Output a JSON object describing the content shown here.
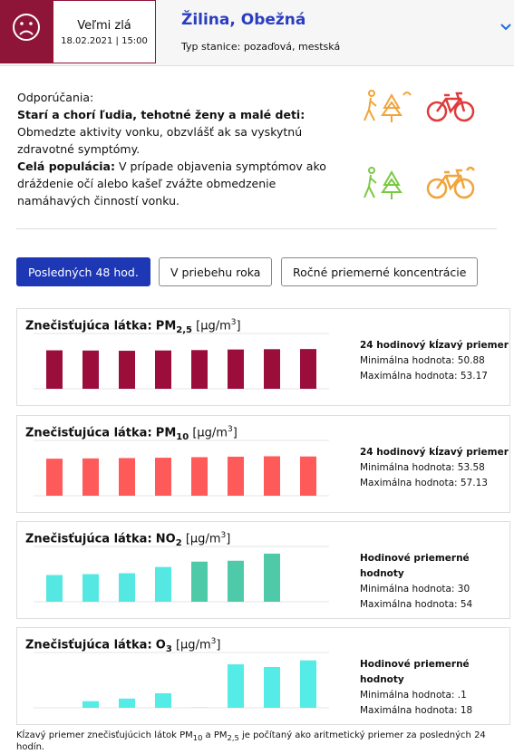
{
  "header": {
    "quality": "Veľmi zlá",
    "date": "18.02.2021",
    "time": "| 15:00",
    "station": "Žilina, Obežná",
    "station_type": "Typ stanice: pozaďová, mestská"
  },
  "recommendations": {
    "heading": "Odporúčania:",
    "group1": "Starí a chorí ľudia, tehotné ženy a malé deti:",
    "text1": "Obmedzte aktivity vonku, obzvlášť ak sa vyskytnú zdravotné symptómy.",
    "group2": "Celá populácia:",
    "text2": "V prípade objavenia symptómov ako dráždenie očí alebo kašeľ zvážte obmedzenie namáhavých činností vonku."
  },
  "tabs": [
    "Posledných 48 hod.",
    "V priebehu roka",
    "Ročné priemerné koncentrácie"
  ],
  "chart_data": [
    {
      "type": "bar",
      "label": "Znečisťujúca látka:",
      "pollutant": "PM",
      "pollutant_sub": "2,5",
      "unit": "[μg/m",
      "unit_sup": "3",
      "unit_close": "]",
      "stats_title": "24 hodinový kĺzavý priemer",
      "stats_min": "Minimálna hodnota: 50.88",
      "stats_max": "Maximálna hodnota: 53.17",
      "values": [
        51.5,
        51.2,
        50.9,
        51.3,
        51.8,
        52.6,
        53.0,
        53.2
      ],
      "color": "#9b0e3c",
      "ylim": [
        0,
        74
      ]
    },
    {
      "type": "bar",
      "label": "Znečisťujúca látka:",
      "pollutant": "PM",
      "pollutant_sub": "10",
      "unit": "[μg/m",
      "unit_sup": "3",
      "unit_close": "]",
      "stats_title": "24 hodinový kĺzavý priemer",
      "stats_min": "Minimálna hodnota: 53.58",
      "stats_max": "Maximálna hodnota: 57.13",
      "values": [
        53.6,
        54.0,
        54.5,
        55.0,
        55.8,
        56.5,
        57.1,
        56.8
      ],
      "color": "#ff5a5a",
      "ylim": [
        0,
        80
      ]
    },
    {
      "type": "bar",
      "label": "Znečisťujúca látka:",
      "pollutant": "NO",
      "pollutant_sub": "2",
      "unit": "[μg/m",
      "unit_sup": "3",
      "unit_close": "]",
      "stats_title": "Hodinové priemerné hodnoty",
      "stats_min": "Minimálna hodnota: 30",
      "stats_max": "Maximálna hodnota: 54",
      "values": [
        30,
        31,
        32,
        39,
        45,
        46,
        54
      ],
      "colors": [
        "#55e8e2",
        "#55e8e2",
        "#55e8e2",
        "#55e8e2",
        "#4fcaa8",
        "#4fcaa8",
        "#4fcaa8"
      ],
      "ylim": [
        0,
        62
      ]
    },
    {
      "type": "bar",
      "label": "Znečisťujúca látka:",
      "pollutant": "O",
      "pollutant_sub": "3",
      "unit": "[μg/m",
      "unit_sup": "3",
      "unit_close": "]",
      "stats_title": "Hodinové priemerné hodnoty",
      "stats_min": "Minimálna hodnota: .1",
      "stats_max": "Maximálna hodnota: 18",
      "values": [
        null,
        2.5,
        3.5,
        5.5,
        0.1,
        16.5,
        15.5,
        18
      ],
      "color": "#55ebe6",
      "ylim": [
        0,
        21
      ]
    }
  ],
  "footnote": [
    "Kĺzavý priemer znečisťujúcich látok PM",
    "10",
    " a PM",
    "2,5",
    " je počítaný ako aritmetický priemer za posledných 24 hodín."
  ]
}
